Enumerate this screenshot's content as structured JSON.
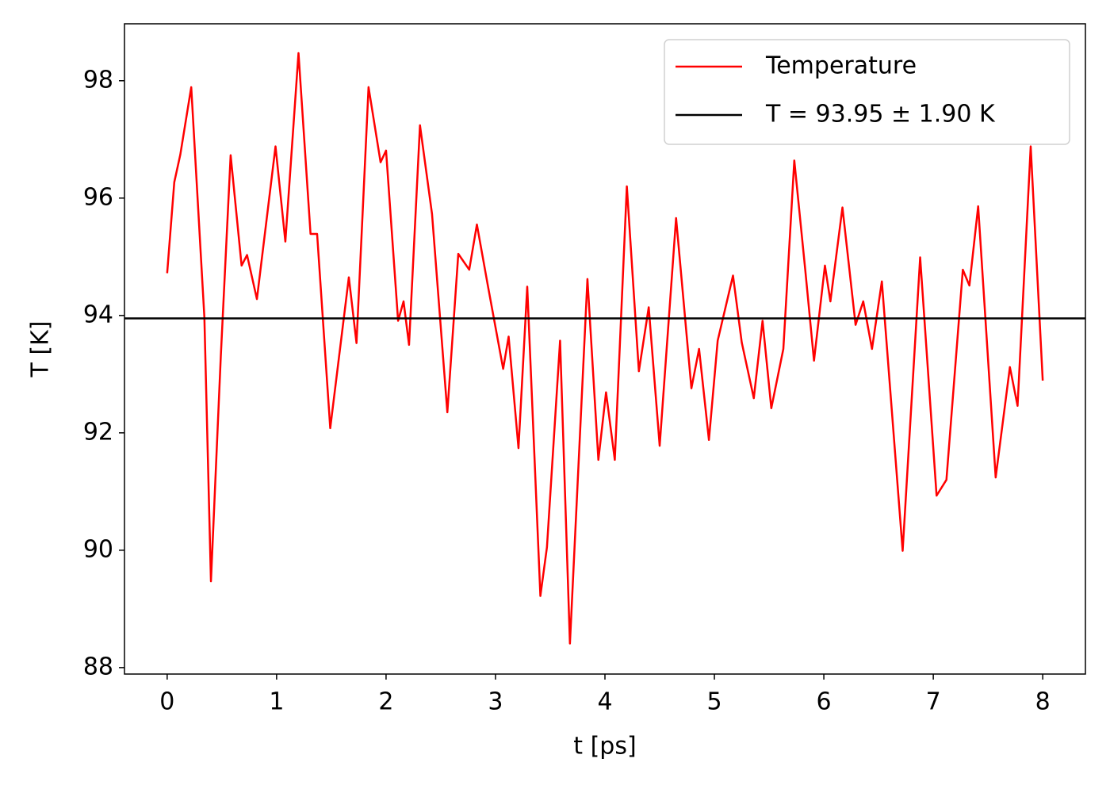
{
  "chart_data": {
    "type": "line",
    "xlabel": "t   [ps]",
    "ylabel": "T   [K]",
    "xlim": [
      -0.39,
      8.39
    ],
    "ylim": [
      87.89,
      98.97
    ],
    "xticks": [
      0,
      1,
      2,
      3,
      4,
      5,
      6,
      7,
      8
    ],
    "yticks": [
      88,
      90,
      92,
      94,
      96,
      98
    ],
    "legend": "upper right",
    "series": [
      {
        "name": "Temperature",
        "color": "#ff0000",
        "x": [
          0,
          0.065,
          0.12,
          0.22,
          0.34,
          0.4,
          0.49,
          0.58,
          0.68,
          0.73,
          0.82,
          0.99,
          1.08,
          1.2,
          1.31,
          1.37,
          1.49,
          1.66,
          1.73,
          1.84,
          1.95,
          2.0,
          2.11,
          2.16,
          2.21,
          2.31,
          2.42,
          2.56,
          2.66,
          2.76,
          2.83,
          2.93,
          3.07,
          3.12,
          3.21,
          3.29,
          3.41,
          3.47,
          3.59,
          3.68,
          3.84,
          3.94,
          4.01,
          4.09,
          4.2,
          4.31,
          4.4,
          4.5,
          4.65,
          4.79,
          4.86,
          4.95,
          5.03,
          5.17,
          5.25,
          5.36,
          5.44,
          5.52,
          5.63,
          5.73,
          5.83,
          5.91,
          6.01,
          6.06,
          6.17,
          6.29,
          6.36,
          6.44,
          6.53,
          6.72,
          6.88,
          7.03,
          7.12,
          7.27,
          7.33,
          7.41,
          7.57,
          7.7,
          7.77,
          7.89,
          8.0
        ],
        "values": [
          94.72,
          96.27,
          96.74,
          97.89,
          93.97,
          89.47,
          93.3,
          96.73,
          94.85,
          95.03,
          94.28,
          96.88,
          95.26,
          98.47,
          95.39,
          95.39,
          92.08,
          94.65,
          93.53,
          97.89,
          96.61,
          96.81,
          93.91,
          94.24,
          93.5,
          97.24,
          95.73,
          92.35,
          95.05,
          94.78,
          95.55,
          94.51,
          93.09,
          93.64,
          91.74,
          94.49,
          89.22,
          90.05,
          93.57,
          88.41,
          94.62,
          91.54,
          92.69,
          91.54,
          96.2,
          93.05,
          94.14,
          91.78,
          95.66,
          92.76,
          93.43,
          91.88,
          93.57,
          94.68,
          93.54,
          92.59,
          93.91,
          92.42,
          93.43,
          96.64,
          94.78,
          93.23,
          94.85,
          94.24,
          95.84,
          93.84,
          94.24,
          93.43,
          94.58,
          89.99,
          94.99,
          90.93,
          91.2,
          94.78,
          94.51,
          95.86,
          91.24,
          93.12,
          92.46,
          96.88,
          92.89
        ]
      },
      {
        "name": "T = 93.95 ± 1.90 K",
        "color": "#000000",
        "type": "hline",
        "value": 93.95
      }
    ]
  }
}
